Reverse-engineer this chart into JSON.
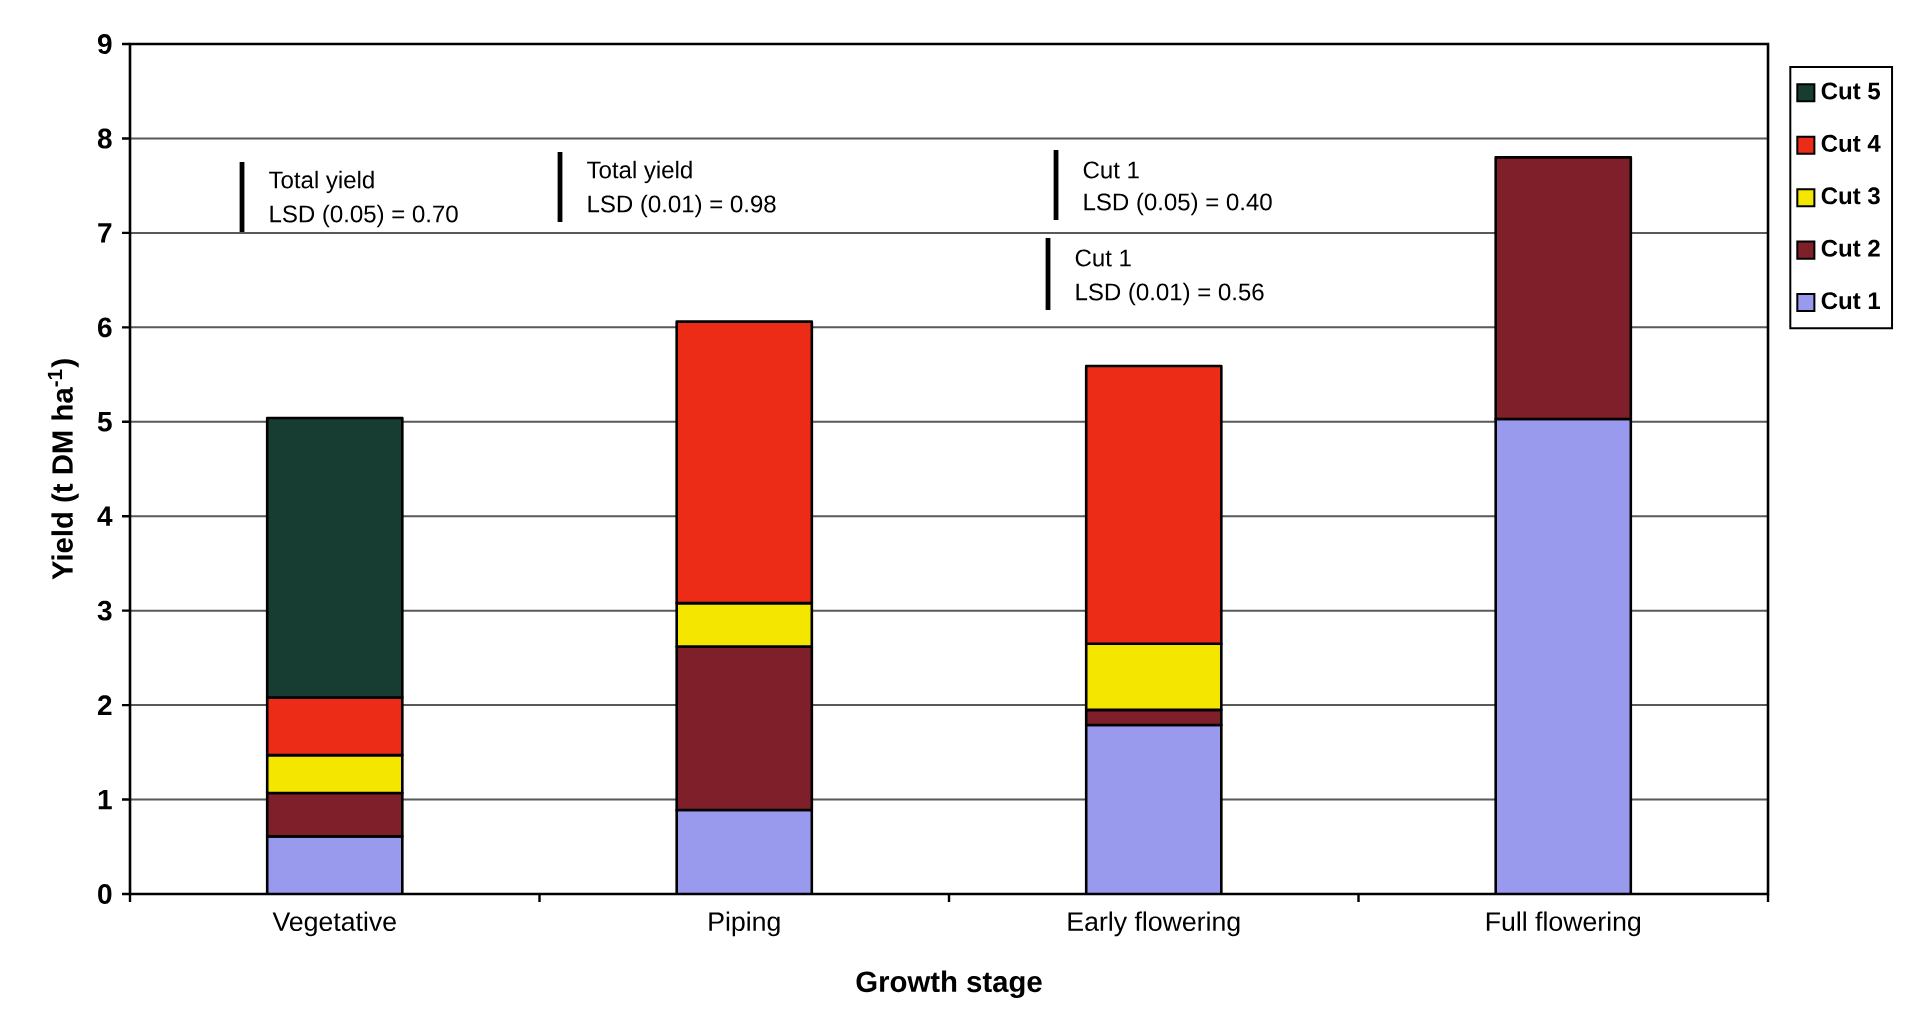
{
  "chart_data": {
    "type": "bar",
    "stacked": true,
    "categories": [
      "Vegetative",
      "Piping",
      "Early flowering",
      "Full flowering"
    ],
    "series": [
      {
        "name": "Cut 1",
        "color": "#9999ee",
        "values": [
          0.61,
          0.89,
          1.79,
          5.03
        ]
      },
      {
        "name": "Cut 2",
        "color": "#7f1f2a",
        "values": [
          0.46,
          1.73,
          0.16,
          2.77
        ]
      },
      {
        "name": "Cut 3",
        "color": "#f5e600",
        "values": [
          0.4,
          0.46,
          0.7,
          null
        ]
      },
      {
        "name": "Cut 4",
        "color": "#ec2c16",
        "values": [
          0.61,
          2.98,
          2.94,
          null
        ]
      },
      {
        "name": "Cut 5",
        "color": "#173d32",
        "values": [
          2.96,
          null,
          null,
          null
        ]
      }
    ],
    "xlabel": "Growth stage",
    "ylabel": "Yield (t DM ha$^{-1}$)",
    "ylim": [
      0,
      9
    ],
    "yticks": [
      0,
      1,
      2,
      3,
      4,
      5,
      6,
      7,
      8,
      9
    ],
    "grid": "y",
    "legend": "right",
    "annotations": [
      "Total yield",
      "LSD (0.05) = 0.70",
      "Total yield",
      "LSD (0.01) = 0.98",
      "Cut 1",
      "LSD (0.05) = 0.40",
      "Cut 1",
      "LSD (0.01) = 0.56"
    ]
  }
}
